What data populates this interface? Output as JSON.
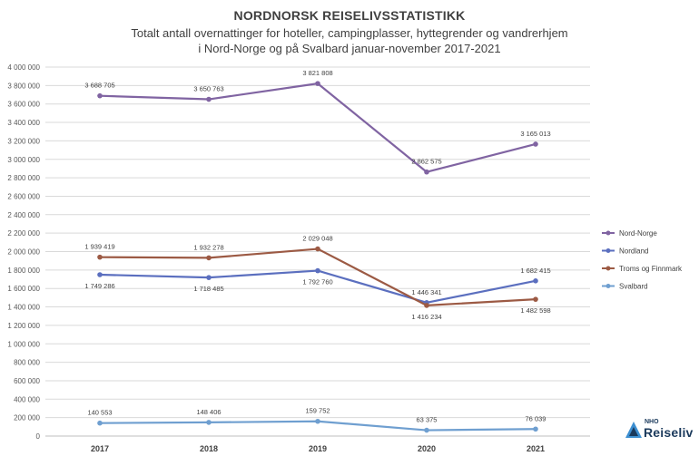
{
  "title": "NORDNORSK REISELIVSSTATISTIKK",
  "subtitle_line1": "Totalt antall overnattinger for hoteller, campingplasser, hyttegrender og vandrerhjem",
  "subtitle_line2": "i Nord-Norge og på Svalbard januar-november 2017-2021",
  "logo": {
    "small": "NHO",
    "big": "Reiseliv"
  },
  "chart_data": {
    "type": "line",
    "title": "NORDNORSK REISELIVSSTATISTIKK",
    "subtitle": "Totalt antall overnattinger for hoteller, campingplasser, hyttegrender og vandrerhjem i Nord-Norge og på Svalbard januar-november 2017-2021",
    "xlabel": "",
    "ylabel": "",
    "categories": [
      "2017",
      "2018",
      "2019",
      "2020",
      "2021"
    ],
    "ylim": [
      0,
      4000000
    ],
    "ytick_step": 200000,
    "yticks": [
      "0",
      "200 000",
      "400 000",
      "600 000",
      "800 000",
      "1 000 000",
      "1 200 000",
      "1 400 000",
      "1 600 000",
      "1 800 000",
      "2 000 000",
      "2 200 000",
      "2 400 000",
      "2 600 000",
      "2 800 000",
      "3 000 000",
      "3 200 000",
      "3 400 000",
      "3 600 000",
      "3 800 000",
      "4 000 000"
    ],
    "grid": true,
    "legend": "right",
    "series": [
      {
        "name": "Nord-Norge",
        "color": "#8064a2",
        "values": [
          3688705,
          3650763,
          3821808,
          2862575,
          3165013
        ],
        "labels": [
          "3 688 705",
          "3 650 763",
          "3 821 808",
          "2 862 575",
          "3 165 013"
        ],
        "label_pos": [
          "above",
          "above",
          "above",
          "above",
          "above"
        ]
      },
      {
        "name": "Nordland",
        "color": "#5b6fbf",
        "values": [
          1749286,
          1718485,
          1792760,
          1446341,
          1682415
        ],
        "labels": [
          "1 749 286",
          "1 718 485",
          "1 792 760",
          "1 446 341",
          "1 682 415"
        ],
        "label_pos": [
          "below",
          "below",
          "below",
          "above",
          "above"
        ]
      },
      {
        "name": "Troms og Finnmark",
        "color": "#9c5a44",
        "values": [
          1939419,
          1932278,
          2029048,
          1416234,
          1482598
        ],
        "labels": [
          "1 939 419",
          "1 932 278",
          "2 029 048",
          "1 416 234",
          "1 482 598"
        ],
        "label_pos": [
          "above",
          "above",
          "above",
          "below",
          "below"
        ]
      },
      {
        "name": "Svalbard",
        "color": "#6f9fd0",
        "values": [
          140553,
          148406,
          159752,
          63375,
          76039
        ],
        "labels": [
          "140 553",
          "148 406",
          "159 752",
          "63 375",
          "76 039"
        ],
        "label_pos": [
          "above",
          "above",
          "above",
          "above",
          "above"
        ]
      }
    ]
  }
}
